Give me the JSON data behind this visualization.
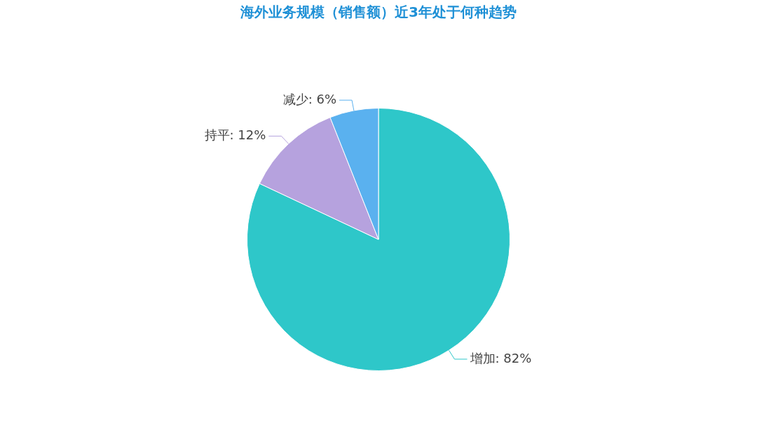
{
  "chart_data": {
    "type": "pie",
    "title": "海外业务规模（销售额）近3年处于何种趋势",
    "categories": [
      "增加",
      "持平",
      "减少"
    ],
    "values": [
      82,
      12,
      6
    ],
    "colors": [
      "#2ec7c9",
      "#b6a2de",
      "#5ab1ef"
    ],
    "value_labels": [
      "82%",
      "12%",
      "6%"
    ],
    "legend": false
  }
}
